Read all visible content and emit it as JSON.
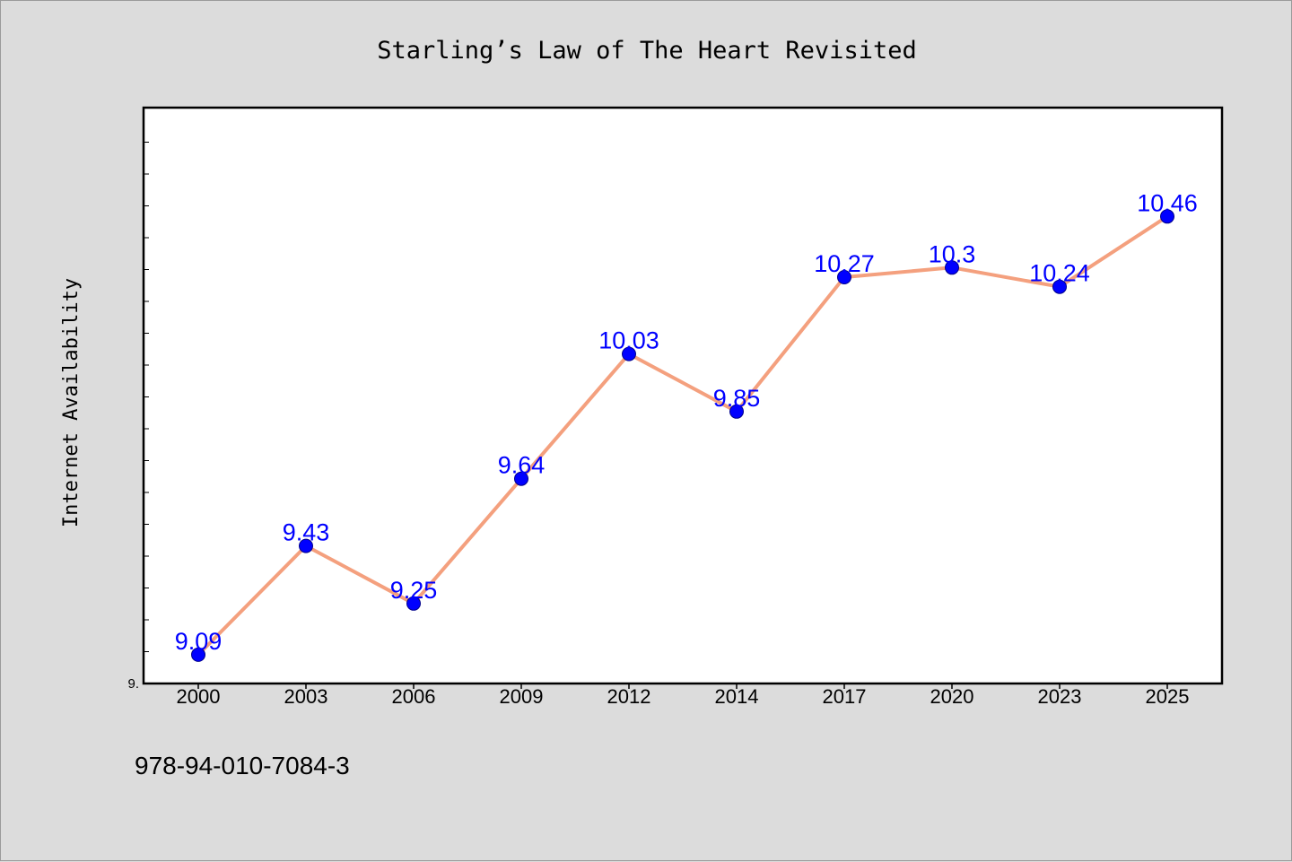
{
  "chart_data": {
    "type": "line",
    "title": "Starling’s Law of The Heart Revisited",
    "xlabel": "",
    "ylabel": "Internet Availability",
    "categories": [
      "2000",
      "2003",
      "2006",
      "2009",
      "2012",
      "2014",
      "2017",
      "2020",
      "2023",
      "2025"
    ],
    "series": [
      {
        "values": [
          9.09,
          9.43,
          9.25,
          9.64,
          10.03,
          9.85,
          10.27,
          10.3,
          10.24,
          10.46
        ]
      }
    ],
    "data_labels": [
      "9.09",
      "9.43",
      "9.25",
      "9.64",
      "10.03",
      "9.85",
      "10.27",
      "10.3",
      "10.24",
      "10.46"
    ],
    "ylim": [
      9.0,
      10.8
    ],
    "y_tick_label": "9.",
    "grid": false,
    "legend": "none",
    "colors": {
      "line": "#f4a07e",
      "marker": "#0000ff",
      "data_label": "#0000ff",
      "plot_background": "#ffffff",
      "figure_background": "#dcdcdc"
    }
  },
  "footer": {
    "isbn": "978-94-010-7084-3"
  }
}
